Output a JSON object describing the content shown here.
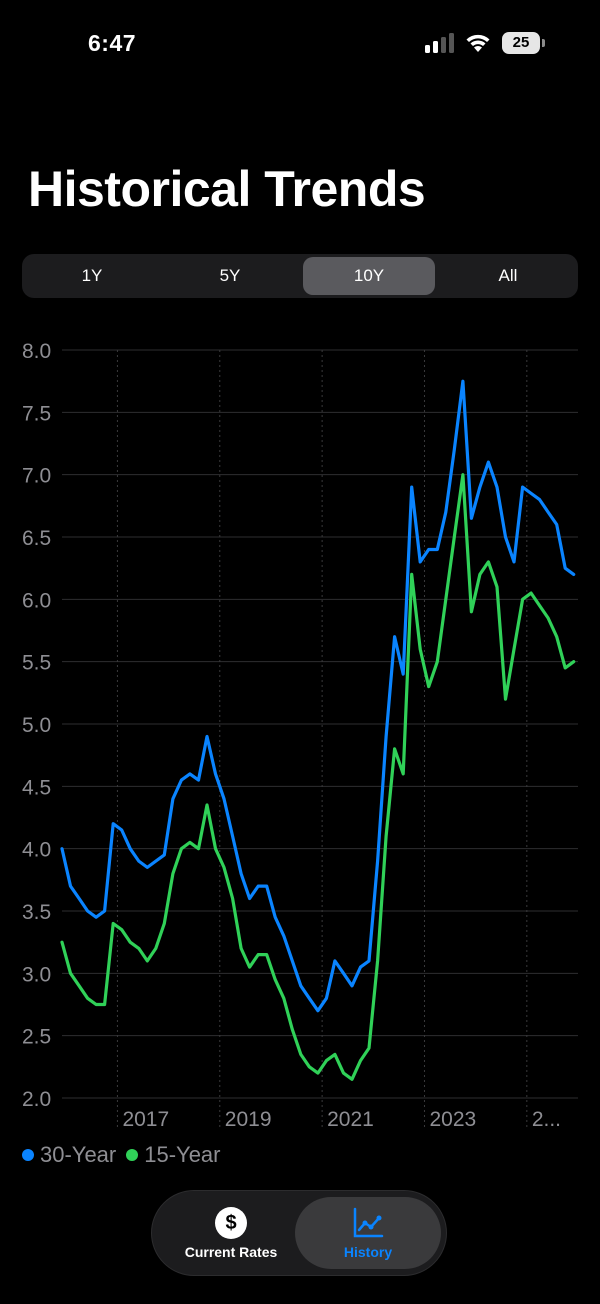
{
  "status_bar": {
    "time": "6:47",
    "battery": "25"
  },
  "page": {
    "title": "Historical Trends"
  },
  "range_tabs": [
    {
      "label": "1Y",
      "active": false
    },
    {
      "label": "5Y",
      "active": false
    },
    {
      "label": "10Y",
      "active": true
    },
    {
      "label": "All",
      "active": false
    }
  ],
  "colors": {
    "thirty_year": "#0a84ff",
    "fifteen_year": "#30d158",
    "active_tab": "#0a84ff"
  },
  "chart_data": {
    "type": "line",
    "ylim": [
      2.0,
      8.0
    ],
    "yticks": [
      "8.0",
      "7.5",
      "7.0",
      "6.5",
      "6.0",
      "5.5",
      "5.0",
      "4.5",
      "4.0",
      "3.5",
      "3.0",
      "2.5",
      "2.0"
    ],
    "xticks": [
      "2017",
      "2019",
      "2021",
      "2023",
      "2..."
    ],
    "legend_position": "bottom-left",
    "series": [
      {
        "name": "30-Year",
        "color": "#0a84ff",
        "points": [
          [
            "2015-12",
            4.0
          ],
          [
            "2016-02",
            3.7
          ],
          [
            "2016-04",
            3.6
          ],
          [
            "2016-06",
            3.5
          ],
          [
            "2016-08",
            3.45
          ],
          [
            "2016-10",
            3.5
          ],
          [
            "2016-12",
            4.2
          ],
          [
            "2017-02",
            4.15
          ],
          [
            "2017-04",
            4.0
          ],
          [
            "2017-06",
            3.9
          ],
          [
            "2017-08",
            3.85
          ],
          [
            "2017-10",
            3.9
          ],
          [
            "2017-12",
            3.95
          ],
          [
            "2018-02",
            4.4
          ],
          [
            "2018-04",
            4.55
          ],
          [
            "2018-06",
            4.6
          ],
          [
            "2018-08",
            4.55
          ],
          [
            "2018-10",
            4.9
          ],
          [
            "2018-12",
            4.6
          ],
          [
            "2019-02",
            4.4
          ],
          [
            "2019-04",
            4.1
          ],
          [
            "2019-06",
            3.8
          ],
          [
            "2019-08",
            3.6
          ],
          [
            "2019-10",
            3.7
          ],
          [
            "2019-12",
            3.7
          ],
          [
            "2020-02",
            3.45
          ],
          [
            "2020-04",
            3.3
          ],
          [
            "2020-06",
            3.1
          ],
          [
            "2020-08",
            2.9
          ],
          [
            "2020-10",
            2.8
          ],
          [
            "2020-12",
            2.7
          ],
          [
            "2021-02",
            2.8
          ],
          [
            "2021-04",
            3.1
          ],
          [
            "2021-06",
            3.0
          ],
          [
            "2021-08",
            2.9
          ],
          [
            "2021-10",
            3.05
          ],
          [
            "2021-12",
            3.1
          ],
          [
            "2022-02",
            3.9
          ],
          [
            "2022-04",
            4.9
          ],
          [
            "2022-06",
            5.7
          ],
          [
            "2022-08",
            5.4
          ],
          [
            "2022-10",
            6.9
          ],
          [
            "2022-12",
            6.3
          ],
          [
            "2023-02",
            6.4
          ],
          [
            "2023-04",
            6.4
          ],
          [
            "2023-06",
            6.7
          ],
          [
            "2023-08",
            7.2
          ],
          [
            "2023-10",
            7.75
          ],
          [
            "2023-12",
            6.65
          ],
          [
            "2024-02",
            6.9
          ],
          [
            "2024-04",
            7.1
          ],
          [
            "2024-06",
            6.9
          ],
          [
            "2024-08",
            6.5
          ],
          [
            "2024-10",
            6.3
          ],
          [
            "2024-12",
            6.9
          ],
          [
            "2025-02",
            6.85
          ],
          [
            "2025-04",
            6.8
          ],
          [
            "2025-06",
            6.7
          ],
          [
            "2025-08",
            6.6
          ],
          [
            "2025-10",
            6.25
          ],
          [
            "2025-12",
            6.2
          ]
        ]
      },
      {
        "name": "15-Year",
        "color": "#30d158",
        "points": [
          [
            "2015-12",
            3.25
          ],
          [
            "2016-02",
            3.0
          ],
          [
            "2016-04",
            2.9
          ],
          [
            "2016-06",
            2.8
          ],
          [
            "2016-08",
            2.75
          ],
          [
            "2016-10",
            2.75
          ],
          [
            "2016-12",
            3.4
          ],
          [
            "2017-02",
            3.35
          ],
          [
            "2017-04",
            3.25
          ],
          [
            "2017-06",
            3.2
          ],
          [
            "2017-08",
            3.1
          ],
          [
            "2017-10",
            3.2
          ],
          [
            "2017-12",
            3.4
          ],
          [
            "2018-02",
            3.8
          ],
          [
            "2018-04",
            4.0
          ],
          [
            "2018-06",
            4.05
          ],
          [
            "2018-08",
            4.0
          ],
          [
            "2018-10",
            4.35
          ],
          [
            "2018-12",
            4.0
          ],
          [
            "2019-02",
            3.85
          ],
          [
            "2019-04",
            3.6
          ],
          [
            "2019-06",
            3.2
          ],
          [
            "2019-08",
            3.05
          ],
          [
            "2019-10",
            3.15
          ],
          [
            "2019-12",
            3.15
          ],
          [
            "2020-02",
            2.95
          ],
          [
            "2020-04",
            2.8
          ],
          [
            "2020-06",
            2.55
          ],
          [
            "2020-08",
            2.35
          ],
          [
            "2020-10",
            2.25
          ],
          [
            "2020-12",
            2.2
          ],
          [
            "2021-02",
            2.3
          ],
          [
            "2021-04",
            2.35
          ],
          [
            "2021-06",
            2.2
          ],
          [
            "2021-08",
            2.15
          ],
          [
            "2021-10",
            2.3
          ],
          [
            "2021-12",
            2.4
          ],
          [
            "2022-02",
            3.1
          ],
          [
            "2022-04",
            4.1
          ],
          [
            "2022-06",
            4.8
          ],
          [
            "2022-08",
            4.6
          ],
          [
            "2022-10",
            6.2
          ],
          [
            "2022-12",
            5.6
          ],
          [
            "2023-02",
            5.3
          ],
          [
            "2023-04",
            5.5
          ],
          [
            "2023-06",
            6.0
          ],
          [
            "2023-08",
            6.5
          ],
          [
            "2023-10",
            7.0
          ],
          [
            "2023-12",
            5.9
          ],
          [
            "2024-02",
            6.2
          ],
          [
            "2024-04",
            6.3
          ],
          [
            "2024-06",
            6.1
          ],
          [
            "2024-08",
            5.2
          ],
          [
            "2024-10",
            5.6
          ],
          [
            "2024-12",
            6.0
          ],
          [
            "2025-02",
            6.05
          ],
          [
            "2025-04",
            5.95
          ],
          [
            "2025-06",
            5.85
          ],
          [
            "2025-08",
            5.7
          ],
          [
            "2025-10",
            5.45
          ],
          [
            "2025-12",
            5.5
          ]
        ]
      }
    ]
  },
  "tabs": [
    {
      "label": "Current Rates",
      "icon": "dollar-circle-icon",
      "active": false
    },
    {
      "label": "History",
      "icon": "line-chart-icon",
      "active": true
    }
  ]
}
